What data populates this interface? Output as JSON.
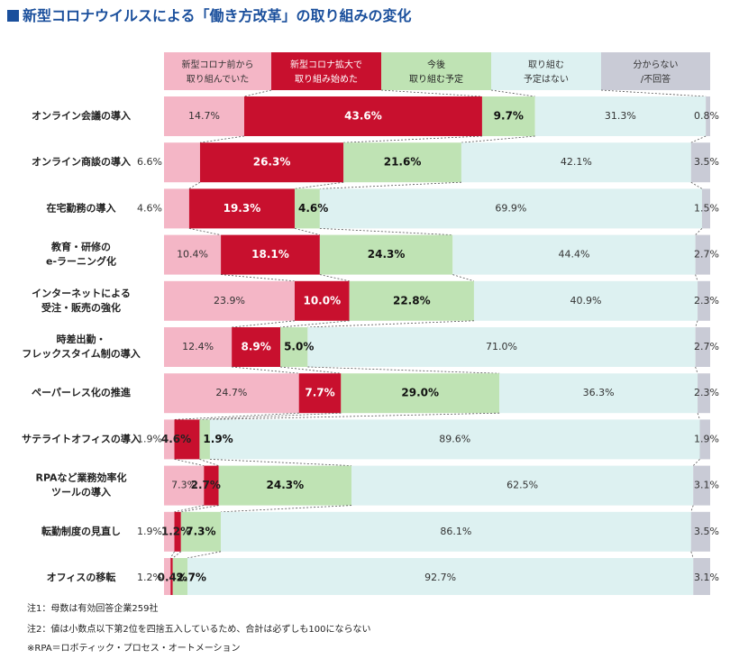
{
  "title": "新型コロナウイルスによる「働き方改革」の取り組みの変化",
  "colors": {
    "title": "#1a4f9c",
    "series": [
      "#f4b6c6",
      "#c8102e",
      "#bfe3b4",
      "#ddf1f1",
      "#c9cbd6"
    ],
    "legend_text": [
      "#333333",
      "#ffffff",
      "#222222",
      "#333333",
      "#333333"
    ],
    "value_text": [
      "#333333",
      "#ffffff",
      "#111111",
      "#333333",
      "#333333"
    ]
  },
  "chart_data": {
    "type": "bar",
    "orientation": "horizontal",
    "stacked": "100%",
    "unit": "%",
    "categories": [
      [
        "オンライン会議の導入"
      ],
      [
        "オンライン商談の導入"
      ],
      [
        "在宅勤務の導入"
      ],
      [
        "教育・研修の",
        "e-ラーニング化"
      ],
      [
        "インターネットによる",
        "受注・販売の強化"
      ],
      [
        "時差出勤・",
        "フレックスタイム制の導入"
      ],
      [
        "ペーパーレス化の推進"
      ],
      [
        "サテライトオフィスの導入"
      ],
      [
        "RPAなど業務効率化",
        "ツールの導入"
      ],
      [
        "転勤制度の見直し"
      ],
      [
        "オフィスの移転"
      ]
    ],
    "series": [
      {
        "name": [
          "新型コロナ前から",
          "取り組んでいた"
        ],
        "values": [
          14.7,
          6.6,
          4.6,
          10.4,
          23.9,
          12.4,
          24.7,
          1.9,
          7.3,
          1.9,
          1.2
        ]
      },
      {
        "name": [
          "新型コロナ拡大で",
          "取り組み始めた"
        ],
        "values": [
          43.6,
          26.3,
          19.3,
          18.1,
          10.0,
          8.9,
          7.7,
          4.6,
          2.7,
          1.2,
          0.4
        ]
      },
      {
        "name": [
          "今後",
          "取り組む予定"
        ],
        "values": [
          9.7,
          21.6,
          4.6,
          24.3,
          22.8,
          5.0,
          29.0,
          1.9,
          24.3,
          7.3,
          2.7
        ]
      },
      {
        "name": [
          "取り組む",
          "予定はない"
        ],
        "values": [
          31.3,
          42.1,
          69.9,
          44.4,
          40.9,
          71.0,
          36.3,
          89.6,
          62.5,
          86.1,
          92.7
        ]
      },
      {
        "name": [
          "分からない",
          "/不回答"
        ],
        "values": [
          0.8,
          3.5,
          1.5,
          2.7,
          2.3,
          2.7,
          2.3,
          1.9,
          3.1,
          3.5,
          3.1
        ]
      }
    ]
  },
  "notes": [
    "注1：母数は有効回答企業259社",
    "注2：値は小数点以下第2位を四捨五入しているため、合計は必ずしも100にならない",
    "※RPA＝ロボティック・プロセス・オートメーション"
  ]
}
